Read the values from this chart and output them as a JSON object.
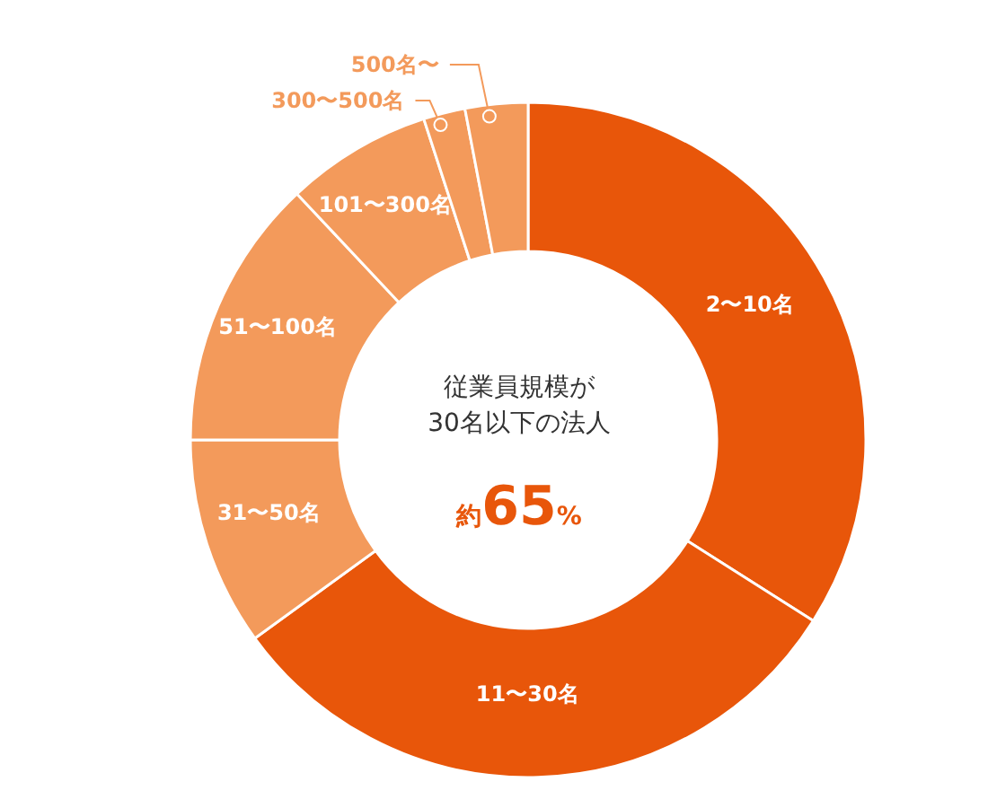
{
  "chart_data": {
    "type": "donut",
    "categories": [
      "2〜10名",
      "11〜30名",
      "31〜50名",
      "51〜100名",
      "101〜300名",
      "300〜500名",
      "500名〜"
    ],
    "values": [
      34,
      31,
      10,
      13,
      7,
      2,
      3
    ],
    "colors": [
      "#e8560a",
      "#e8560a",
      "#f39a5b",
      "#f39a5b",
      "#f39a5b",
      "#f39a5b",
      "#f39a5b"
    ],
    "annotations": [
      "従業員規模が\n30名以下の法人",
      "約65%"
    ],
    "legend": false
  }
}
